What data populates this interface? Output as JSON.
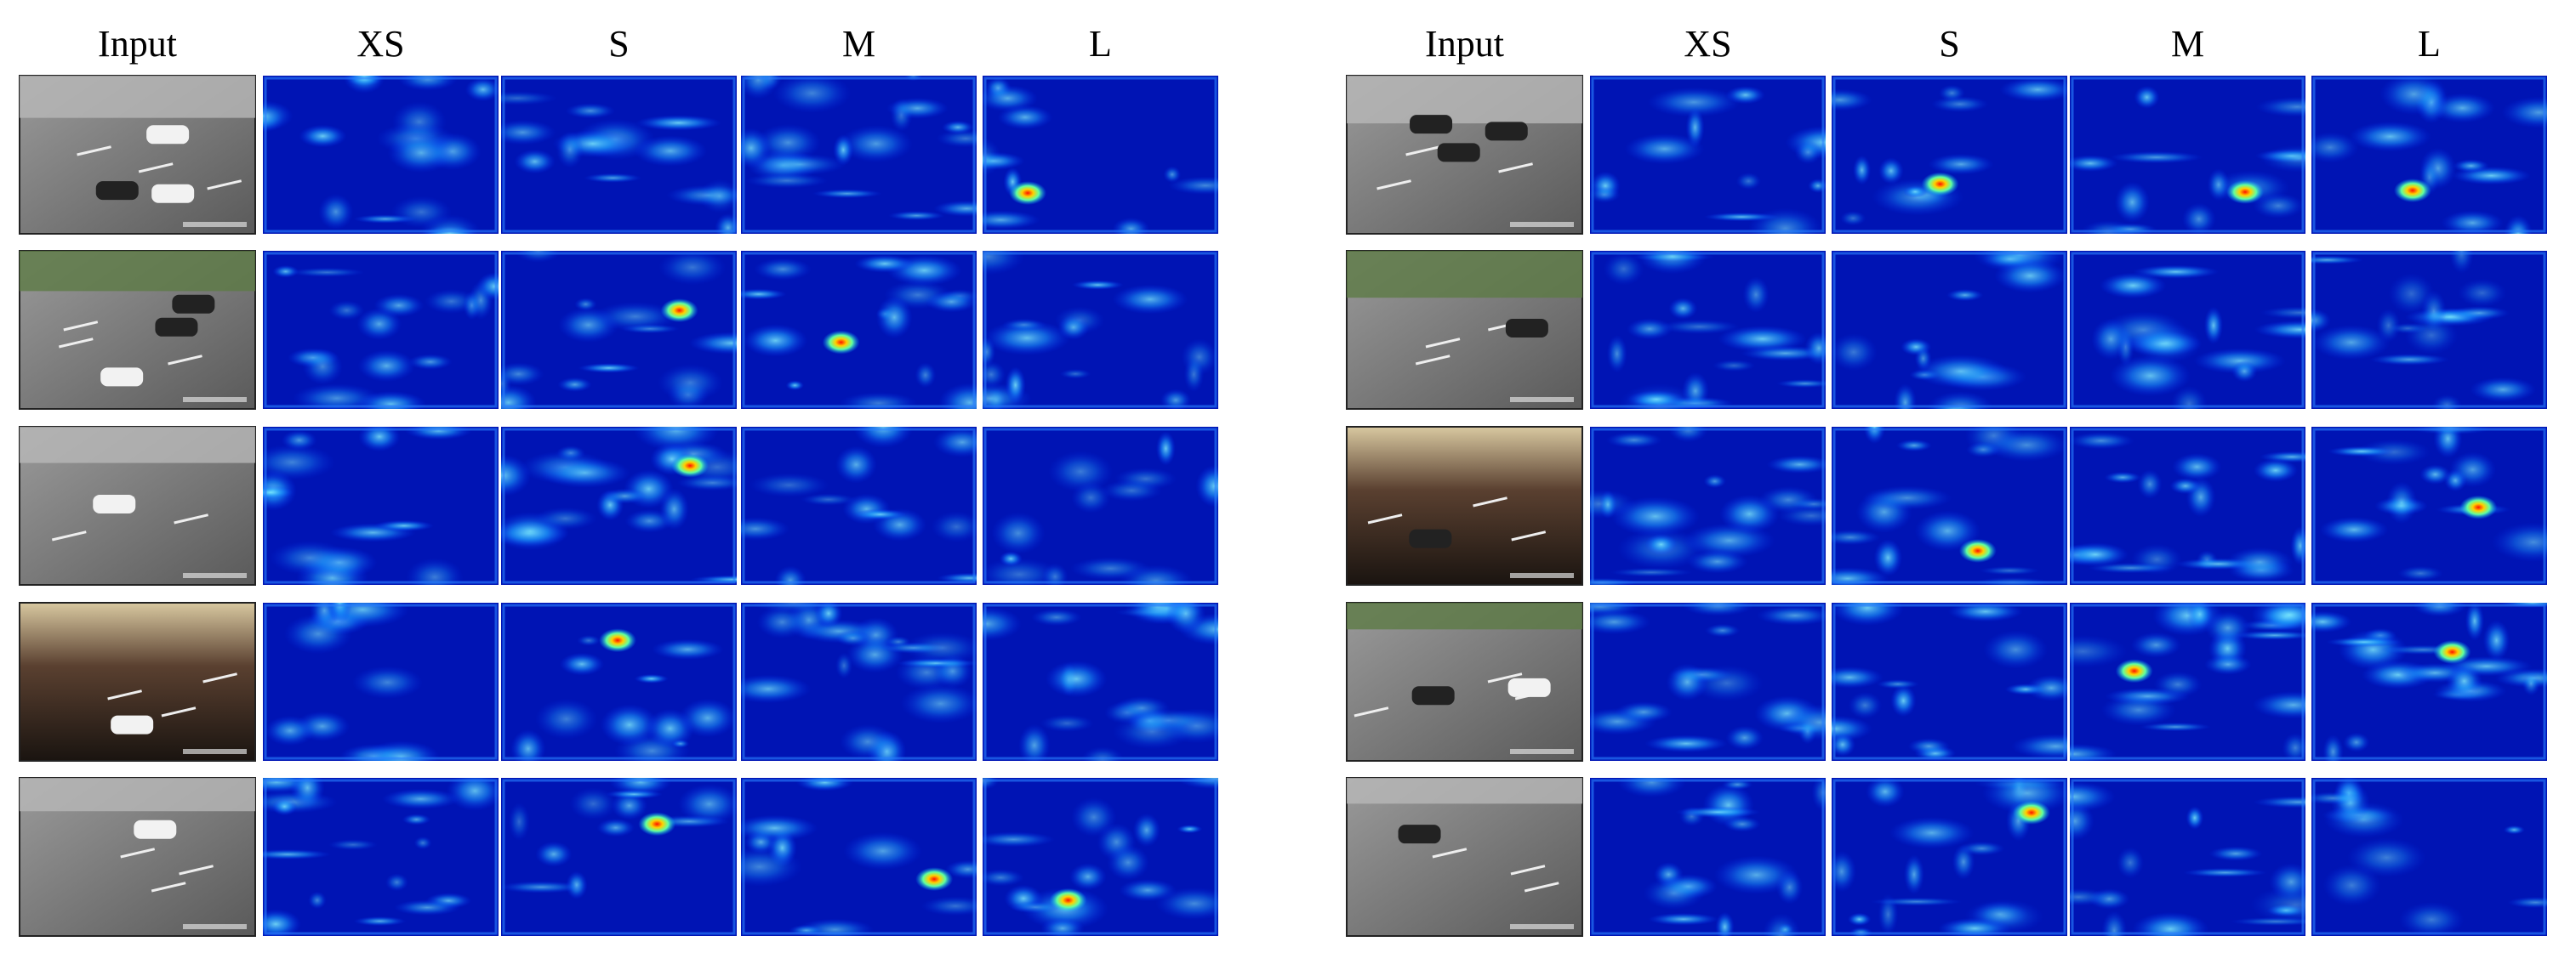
{
  "left_group": {
    "headers": [
      "Input",
      "XS",
      "S",
      "M",
      "L"
    ]
  },
  "right_group": {
    "headers": [
      "Input",
      "XS",
      "S",
      "M",
      "L"
    ]
  }
}
